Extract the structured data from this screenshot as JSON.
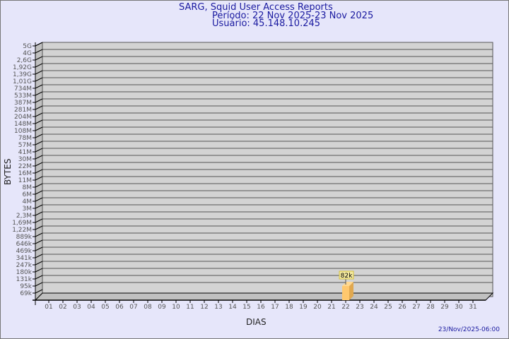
{
  "header": {
    "title": "SARG, Squid User Access Reports",
    "period": "Período: 22 Nov 2025-23 Nov 2025",
    "user": "Usuário: 45.148.10.245"
  },
  "footer": {
    "timestamp": "23/Nov/2025-06:00"
  },
  "colors": {
    "background": "#e6e6fa",
    "plot": "#d3d3d3",
    "bar": "#ffc86e",
    "bar_side": "#e0a850",
    "title": "#1a1aa0"
  },
  "chart_data": {
    "type": "bar",
    "xlabel": "DIAS",
    "ylabel": "BYTES",
    "categories": [
      "01",
      "02",
      "03",
      "04",
      "05",
      "06",
      "07",
      "08",
      "09",
      "10",
      "11",
      "12",
      "13",
      "14",
      "15",
      "16",
      "17",
      "18",
      "19",
      "20",
      "21",
      "22",
      "23",
      "24",
      "25",
      "26",
      "27",
      "28",
      "29",
      "30",
      "31"
    ],
    "values": [
      null,
      null,
      null,
      null,
      null,
      null,
      null,
      null,
      null,
      null,
      null,
      null,
      null,
      null,
      null,
      null,
      null,
      null,
      null,
      null,
      null,
      82000,
      null,
      null,
      null,
      null,
      null,
      null,
      null,
      null,
      null
    ],
    "data_labels": {
      "22": "82k"
    },
    "y_tick_labels": [
      "5G",
      "4G",
      "2,6G",
      "1,92G",
      "1,39G",
      "1,01G",
      "734M",
      "533M",
      "387M",
      "281M",
      "204M",
      "148M",
      "108M",
      "78M",
      "57M",
      "41M",
      "30M",
      "22M",
      "16M",
      "11M",
      "8M",
      "6M",
      "4M",
      "3M",
      "2,3M",
      "1,69M",
      "1,22M",
      "889k",
      "646k",
      "469k",
      "341k",
      "247k",
      "180k",
      "131k",
      "95k",
      "69k"
    ],
    "grid": true,
    "style": "3d"
  }
}
